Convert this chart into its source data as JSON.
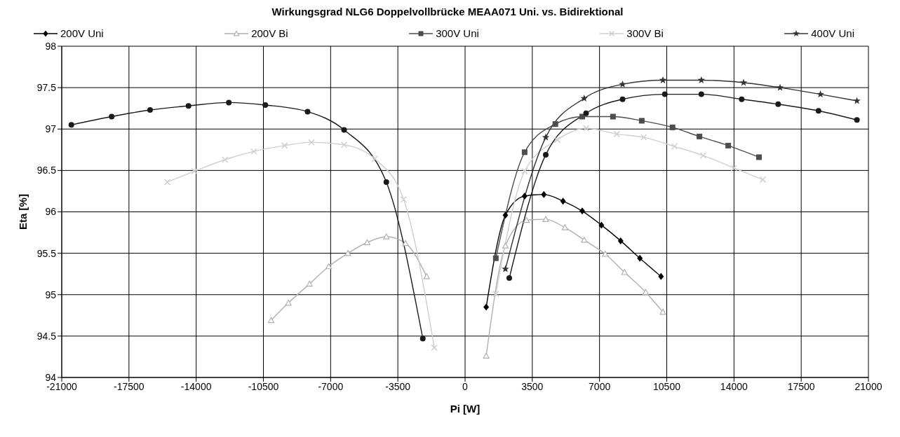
{
  "chart_data": {
    "type": "line",
    "title": "Wirkungsgrad NLG6 Doppelvollbrücke MEAA071 Uni. vs. Bidirektional",
    "xlabel": "Pi [W]",
    "ylabel": "Eta [%]",
    "xlim": [
      -21000,
      21000
    ],
    "xticks": [
      -21000,
      -17500,
      -14000,
      -10500,
      -7000,
      -3500,
      0,
      3500,
      7000,
      10500,
      14000,
      17500,
      21000
    ],
    "ylim": [
      94,
      98
    ],
    "yticks": [
      94,
      94.5,
      95,
      95.5,
      96,
      96.5,
      97,
      97.5,
      98
    ],
    "grid": true,
    "legend": "top",
    "series": [
      {
        "name": "200V Uni",
        "color": "#000000",
        "marker": "diamond",
        "x": [
          1100,
          2100,
          3100,
          4100,
          5100,
          6100,
          7100,
          8100,
          9100,
          10200
        ],
        "values": [
          94.85,
          95.96,
          96.19,
          96.21,
          96.13,
          96.01,
          95.84,
          95.65,
          95.44,
          95.22
        ]
      },
      {
        "name": "200V Bi",
        "color": "#b0b0b0",
        "marker": "triangle",
        "x": [
          -10100,
          -9200,
          -8100,
          -7100,
          -6100,
          -5100,
          -4100,
          -3100,
          -2000,
          null,
          1100,
          2100,
          3200,
          4200,
          5200,
          6200,
          7300,
          8300,
          9400,
          10300
        ],
        "values": [
          94.69,
          94.9,
          95.13,
          95.34,
          95.5,
          95.63,
          95.7,
          95.62,
          95.22,
          null,
          94.26,
          95.59,
          95.9,
          95.91,
          95.81,
          95.66,
          95.49,
          95.27,
          95.03,
          94.79
        ]
      },
      {
        "name": "300V Uni",
        "color": "#4d4d4d",
        "marker": "square",
        "x": [
          1600,
          3100,
          4700,
          6100,
          7700,
          9200,
          10800,
          12200,
          13700,
          15300
        ],
        "values": [
          95.44,
          96.72,
          97.06,
          97.15,
          97.15,
          97.1,
          97.02,
          96.91,
          96.8,
          96.66
        ]
      },
      {
        "name": "300V Bi",
        "color": "#cfcfcf",
        "marker": "cross",
        "x": [
          -15500,
          -14100,
          -12500,
          -11000,
          -9400,
          -8000,
          -6300,
          -4700,
          -3200,
          -1600,
          null,
          1600,
          3100,
          4800,
          6300,
          7900,
          9300,
          10900,
          12400,
          14000,
          15500
        ],
        "values": [
          96.36,
          96.49,
          96.63,
          96.73,
          96.8,
          96.84,
          96.81,
          96.64,
          96.15,
          94.36,
          null,
          95.01,
          96.49,
          96.87,
          97.01,
          96.94,
          96.9,
          96.79,
          96.68,
          96.53,
          96.39
        ]
      },
      {
        "name": "400V Uni",
        "color": "#333333",
        "marker": "star",
        "x": [
          2100,
          4200,
          6200,
          8200,
          10300,
          12300,
          14500,
          16400,
          18500,
          20400
        ],
        "values": [
          95.31,
          96.9,
          97.37,
          97.54,
          97.59,
          97.59,
          97.56,
          97.5,
          97.42,
          97.34
        ]
      },
      {
        "color": "#1a1a1a",
        "marker": "circle",
        "x": [
          -20500,
          -18400,
          -16400,
          -14400,
          -12300,
          -10400,
          -8200,
          -6300,
          -4100,
          -2200,
          null,
          2300,
          4200,
          6300,
          8200,
          10400,
          12300,
          14400,
          16300,
          18400,
          20400
        ],
        "values": [
          97.05,
          97.15,
          97.23,
          97.28,
          97.32,
          97.29,
          97.21,
          96.99,
          96.36,
          94.47,
          null,
          95.2,
          96.69,
          97.19,
          97.36,
          97.42,
          97.42,
          97.36,
          97.3,
          97.22,
          97.11
        ]
      }
    ]
  }
}
